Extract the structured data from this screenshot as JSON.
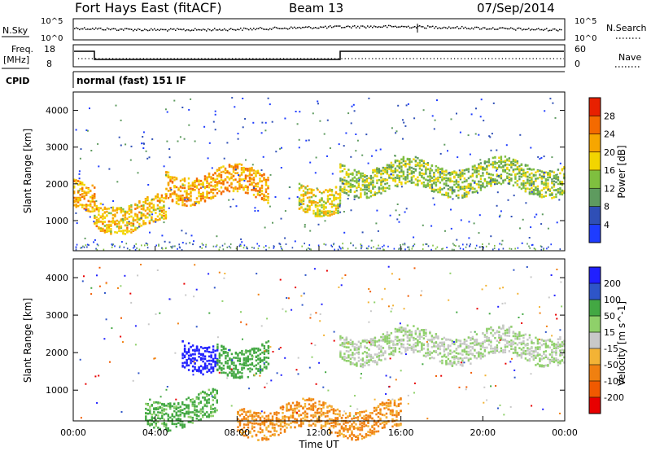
{
  "header": {
    "station": "Fort Hays East (fitACF)",
    "beam": "Beam 13",
    "date": "07/Sep/2014"
  },
  "strip_labels": {
    "nsky": "N.Sky",
    "nsky_tick_top": "10^5",
    "nsky_tick_bottom": "10^0",
    "nsearch": "N.Search",
    "nsearch_tick_top": "10^5",
    "nsearch_tick_bottom": "10^0",
    "freq": "Freq.",
    "freq_unit": "[MHz]",
    "freq_tick_top": "18",
    "freq_tick_bottom": "8",
    "nave": "Nave",
    "nave_tick_top": "60",
    "nave_tick_bottom": "0",
    "cpid": "CPID",
    "cpid_value": "normal (fast) 151 IF"
  },
  "colors": {
    "power": [
      "#1e3cff",
      "#2f4fb6",
      "#5e9b5f",
      "#7fbf3f",
      "#f2d500",
      "#f7a600",
      "#f46a00",
      "#e82000"
    ],
    "velocity": [
      "#2020ff",
      "#2e55c8",
      "#43a843",
      "#8fd06a",
      "#c8c8c8",
      "#f3b335",
      "#f08010",
      "#f05a00",
      "#e80000"
    ]
  },
  "chart_data": [
    {
      "type": "heatmap",
      "name": "power",
      "ylabel": "Slant Range [km]",
      "ylim": [
        180,
        4500
      ],
      "yticks": [
        "1000",
        "2000",
        "3000",
        "4000"
      ],
      "xlim": [
        "00:00",
        "24:00"
      ],
      "colorbar_label": "Power [dB]",
      "colorbar_ticks": [
        "4",
        "8",
        "12",
        "16",
        "20",
        "24",
        "28"
      ],
      "features": [
        {
          "t_start": 0.0,
          "t_end": 1.0,
          "range_km": 1800,
          "power_db": 24
        },
        {
          "t_start": 1.0,
          "t_end": 4.5,
          "range_km": 1200,
          "power_db": 22
        },
        {
          "t_start": 4.5,
          "t_end": 9.5,
          "range_km": 2000,
          "power_db": 24
        },
        {
          "t_start": 11.0,
          "t_end": 13.0,
          "range_km": 1700,
          "power_db": 20
        },
        {
          "t_start": 13.0,
          "t_end": 24.0,
          "range_km": 2200,
          "power_db": 16
        }
      ]
    },
    {
      "type": "heatmap",
      "name": "velocity",
      "ylabel": "Slant Range [km]",
      "xlabel": "Time UT",
      "ylim": [
        180,
        4500
      ],
      "yticks": [
        "1000",
        "2000",
        "3000",
        "4000"
      ],
      "xticks": [
        "00:00",
        "04:00",
        "08:00",
        "12:00",
        "16:00",
        "20:00",
        "00:00"
      ],
      "colorbar_label": "Velocity [m s^-1]",
      "colorbar_ticks": [
        "200",
        "100",
        "50",
        "15",
        "-15",
        "-50",
        "-100",
        "-200"
      ],
      "features": [
        {
          "t_start": 5.3,
          "t_end": 7.0,
          "range_km": 2000,
          "velocity_ms": 200
        },
        {
          "t_start": 7.0,
          "t_end": 9.5,
          "range_km": 1900,
          "velocity_ms": 60
        },
        {
          "t_start": 13.0,
          "t_end": 24.0,
          "range_km": 2200,
          "velocity_ms": 0
        },
        {
          "t_start": 3.5,
          "t_end": 7.0,
          "range_km": 500,
          "velocity_ms": 40
        },
        {
          "t_start": 8.0,
          "t_end": 16.0,
          "range_km": 250,
          "velocity_ms": -80
        }
      ]
    }
  ]
}
